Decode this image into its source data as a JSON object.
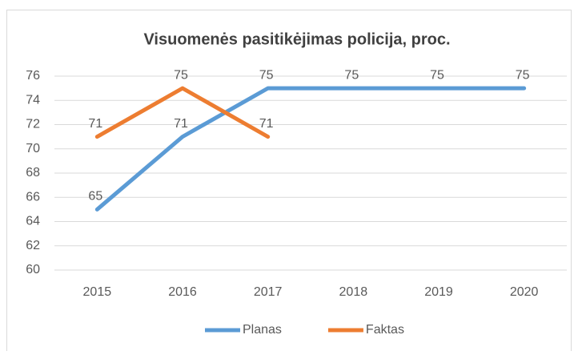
{
  "chart_data": {
    "type": "line",
    "title": "Visuomenės pasitikėjimas policija, proc.",
    "categories": [
      "2015",
      "2016",
      "2017",
      "2018",
      "2019",
      "2020"
    ],
    "series": [
      {
        "name": "Planas",
        "color": "#5b9bd5",
        "values": [
          65,
          71,
          75,
          75,
          75,
          75
        ]
      },
      {
        "name": "Faktas",
        "color": "#ed7d31",
        "values": [
          71,
          75,
          71,
          null,
          null,
          null
        ]
      }
    ],
    "ylim": [
      60,
      76
    ],
    "yticks": [
      60,
      62,
      64,
      66,
      68,
      70,
      72,
      74,
      76
    ],
    "grid": true,
    "legend": "bottom"
  }
}
